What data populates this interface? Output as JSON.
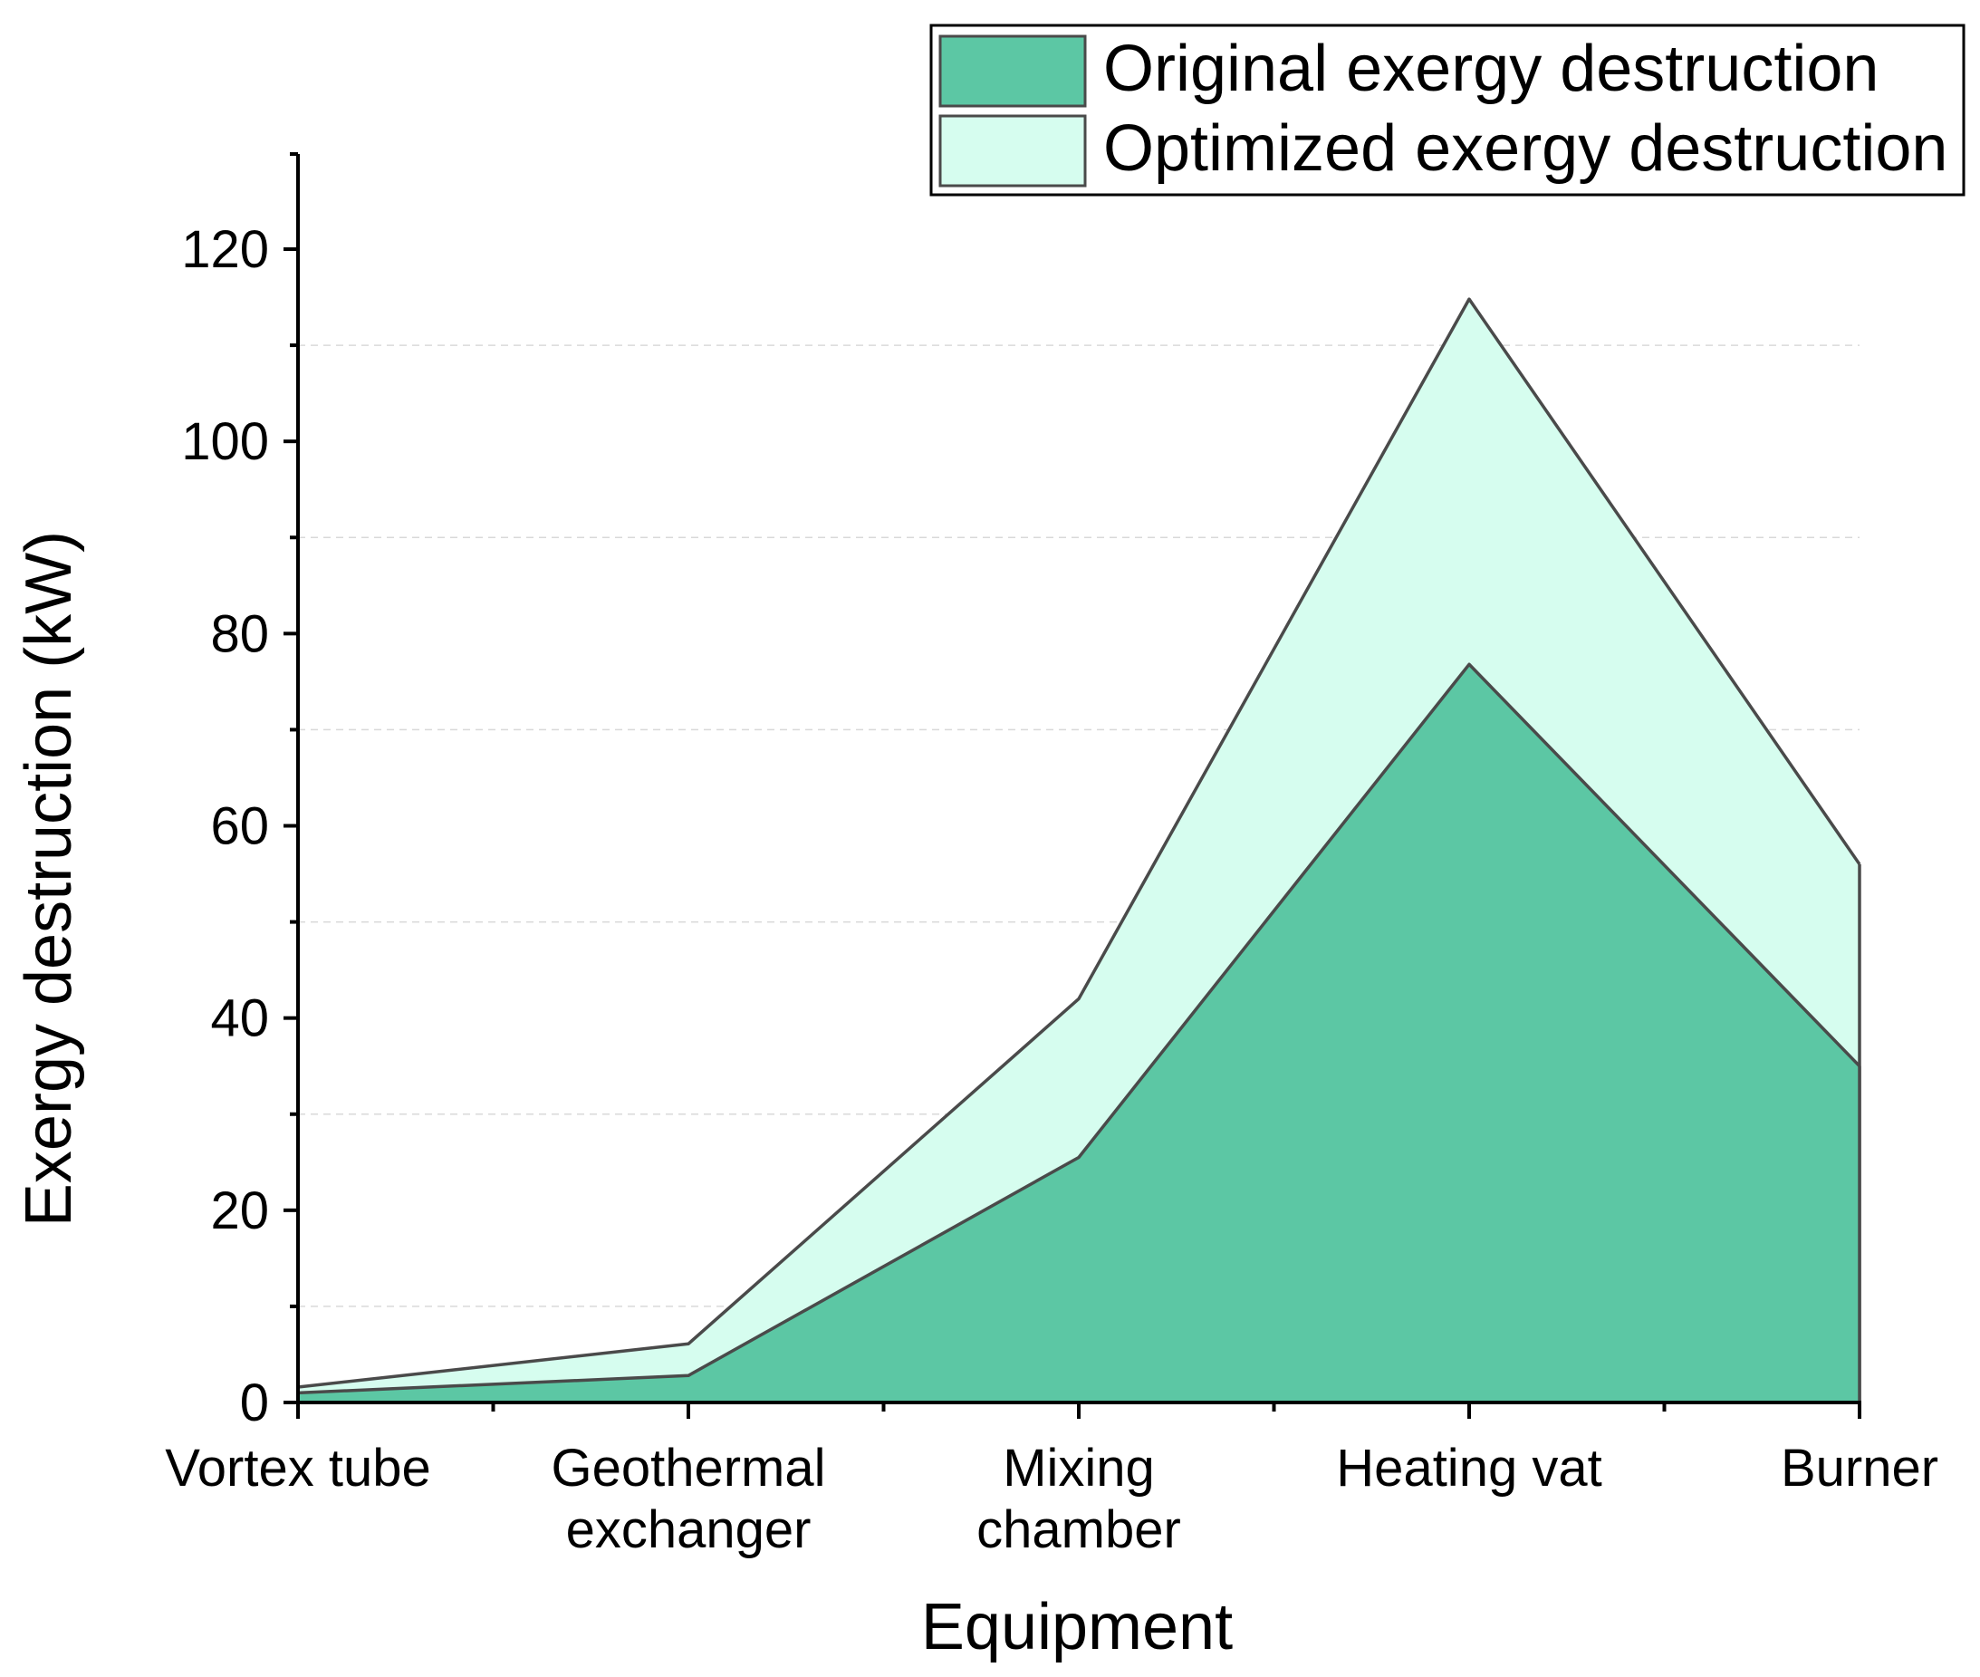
{
  "chart_data": {
    "type": "area",
    "xlabel": "Equipment",
    "ylabel": "Exergy destruction (kW)",
    "categories": [
      [
        "Vortex tube"
      ],
      [
        "Geothermal",
        "exchanger"
      ],
      [
        "Mixing",
        "chamber"
      ],
      [
        "Heating vat"
      ],
      [
        "Burner"
      ]
    ],
    "series": [
      {
        "name": "Original exergy destruction",
        "values": [
          1.0,
          2.8,
          25.5,
          76.8,
          35.0
        ],
        "color": "#5cc7a4"
      },
      {
        "name": "Optimized exergy destruction",
        "values": [
          1.6,
          6.1,
          42.0,
          114.8,
          56.0
        ],
        "color": "#d6fdef"
      }
    ],
    "ylim": [
      0,
      130
    ],
    "yticks": [
      0,
      20,
      40,
      60,
      80,
      100,
      120
    ],
    "grid": "horizontal dashed",
    "legend": "top-right",
    "line_color": "#4a4a4a"
  }
}
